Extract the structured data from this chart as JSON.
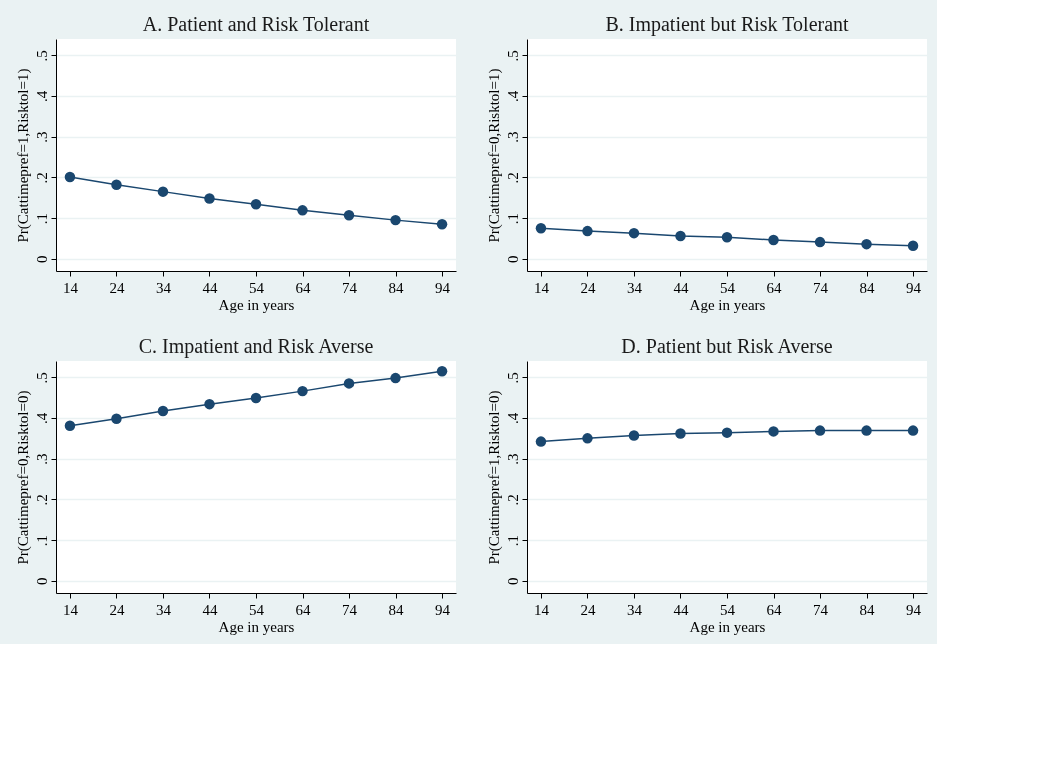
{
  "chart_data": [
    {
      "type": "line",
      "title": "A. Patient and Risk Tolerant",
      "xlabel": "Age in years",
      "ylabel": "Pr(Cattimepref=1,Risktol=1)",
      "x": [
        14,
        24,
        34,
        44,
        54,
        64,
        74,
        84,
        94
      ],
      "series": [
        {
          "color": "#1a476f",
          "values": [
            0.201,
            0.182,
            0.165,
            0.148,
            0.134,
            0.119,
            0.107,
            0.095,
            0.085
          ]
        }
      ],
      "xlim": [
        11,
        97
      ],
      "ylim": [
        -0.03,
        0.54
      ],
      "xticks": [
        14,
        24,
        34,
        44,
        54,
        64,
        74,
        84,
        94
      ],
      "yticks": [
        0,
        {
          "value": 0.1,
          "label": ".1"
        },
        {
          "value": 0.2,
          "label": ".2"
        },
        {
          "value": 0.3,
          "label": ".3"
        },
        {
          "value": 0.4,
          "label": ".4"
        },
        {
          "value": 0.5,
          "label": ".5"
        }
      ],
      "grid": "y",
      "marker": "circle",
      "line_style": "solid"
    },
    {
      "type": "line",
      "title": "B. Impatient but Risk Tolerant",
      "xlabel": "Age in years",
      "ylabel": "Pr(Cattimepref=0,Risktol=1)",
      "x": [
        14,
        24,
        34,
        44,
        54,
        64,
        74,
        84,
        94
      ],
      "series": [
        {
          "color": "#1a476f",
          "values": [
            0.075,
            0.068,
            0.063,
            0.056,
            0.053,
            0.046,
            0.041,
            0.036,
            0.032
          ]
        }
      ],
      "xlim": [
        11,
        97
      ],
      "ylim": [
        -0.03,
        0.54
      ],
      "xticks": [
        14,
        24,
        34,
        44,
        54,
        64,
        74,
        84,
        94
      ],
      "yticks": [
        0,
        {
          "value": 0.1,
          "label": ".1"
        },
        {
          "value": 0.2,
          "label": ".2"
        },
        {
          "value": 0.3,
          "label": ".3"
        },
        {
          "value": 0.4,
          "label": ".4"
        },
        {
          "value": 0.5,
          "label": ".5"
        }
      ],
      "grid": "y",
      "marker": "circle",
      "line_style": "solid"
    },
    {
      "type": "line",
      "title": "C. Impatient and Risk Averse",
      "xlabel": "Age in years",
      "ylabel": "Pr(Cattimepref=0,Risktol=0)",
      "x": [
        14,
        24,
        34,
        44,
        54,
        64,
        74,
        84,
        94
      ],
      "series": [
        {
          "color": "#1a476f",
          "values": [
            0.381,
            0.398,
            0.417,
            0.434,
            0.449,
            0.466,
            0.485,
            0.498,
            0.515
          ]
        }
      ],
      "xlim": [
        11,
        97
      ],
      "ylim": [
        -0.03,
        0.54
      ],
      "xticks": [
        14,
        24,
        34,
        44,
        54,
        64,
        74,
        84,
        94
      ],
      "yticks": [
        0,
        {
          "value": 0.1,
          "label": ".1"
        },
        {
          "value": 0.2,
          "label": ".2"
        },
        {
          "value": 0.3,
          "label": ".3"
        },
        {
          "value": 0.4,
          "label": ".4"
        },
        {
          "value": 0.5,
          "label": ".5"
        }
      ],
      "grid": "y",
      "marker": "circle",
      "line_style": "solid"
    },
    {
      "type": "line",
      "title": "D. Patient but Risk Averse",
      "xlabel": "Age in years",
      "ylabel": "Pr(Cattimepref=1,Risktol=0)",
      "x": [
        14,
        24,
        34,
        44,
        54,
        64,
        74,
        84,
        94
      ],
      "series": [
        {
          "color": "#1a476f",
          "values": [
            0.342,
            0.35,
            0.357,
            0.362,
            0.364,
            0.367,
            0.369,
            0.369,
            0.369
          ]
        }
      ],
      "xlim": [
        11,
        97
      ],
      "ylim": [
        -0.03,
        0.54
      ],
      "xticks": [
        14,
        24,
        34,
        44,
        54,
        64,
        74,
        84,
        94
      ],
      "yticks": [
        0,
        {
          "value": 0.1,
          "label": ".1"
        },
        {
          "value": 0.2,
          "label": ".2"
        },
        {
          "value": 0.3,
          "label": ".3"
        },
        {
          "value": 0.4,
          "label": ".4"
        },
        {
          "value": 0.5,
          "label": ".5"
        }
      ],
      "grid": "y",
      "marker": "circle",
      "line_style": "solid"
    }
  ]
}
